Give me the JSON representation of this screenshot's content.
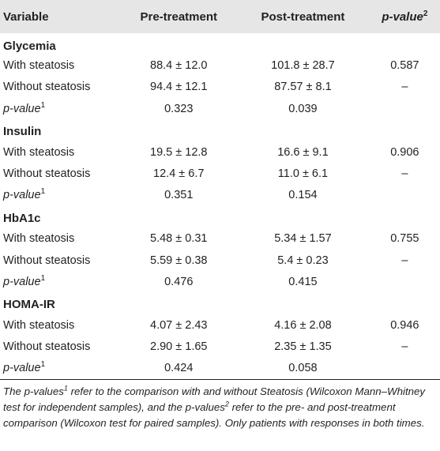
{
  "table": {
    "headers": {
      "variable": "Variable",
      "pre": "Pre-treatment",
      "post": "Post-treatment",
      "pvalue_label": "p-value",
      "pvalue_sup": "2"
    },
    "row_labels": {
      "with": "With steatosis",
      "without": "Without steatosis",
      "p_label": "p-value",
      "p_sup": "1"
    },
    "groups": [
      {
        "name": "Glycemia",
        "with": {
          "pre": "88.4 ± 12.0",
          "post": "101.8 ± 28.7",
          "p": "0.587"
        },
        "without": {
          "pre": "94.4 ± 12.1",
          "post": "87.57 ± 8.1",
          "p": "–"
        },
        "pvalue": {
          "pre": "0.323",
          "post": "0.039"
        }
      },
      {
        "name": "Insulin",
        "with": {
          "pre": "19.5 ± 12.8",
          "post": "16.6 ± 9.1",
          "p": "0.906"
        },
        "without": {
          "pre": "12.4 ± 6.7",
          "post": "11.0 ± 6.1",
          "p": "–"
        },
        "pvalue": {
          "pre": "0.351",
          "post": "0.154"
        }
      },
      {
        "name": "HbA1c",
        "with": {
          "pre": "5.48 ± 0.31",
          "post": "5.34 ± 1.57",
          "p": "0.755"
        },
        "without": {
          "pre": "5.59 ± 0.38",
          "post": "5.4 ± 0.23",
          "p": "–"
        },
        "pvalue": {
          "pre": "0.476",
          "post": "0.415"
        }
      },
      {
        "name": "HOMA-IR",
        "with": {
          "pre": "4.07 ± 2.43",
          "post": "4.16 ± 2.08",
          "p": "0.946"
        },
        "without": {
          "pre": "2.90 ± 1.65",
          "post": "2.35 ± 1.35",
          "p": "–"
        },
        "pvalue": {
          "pre": "0.424",
          "post": "0.058"
        }
      }
    ]
  },
  "footnote": {
    "part1": "The p-values",
    "sup1": "1",
    "part2": " refer to the comparison with and without Steatosis (Wilcoxon Mann–Whitney test for independent samples), and the p-values",
    "sup2": "2",
    "part3": " refer to the pre- and post-treatment comparison (Wilcoxon test for paired samples). Only patients with responses in both times."
  },
  "colors": {
    "header_bg": "#e6e6e6",
    "text": "#231f20",
    "rule": "#231f20"
  }
}
